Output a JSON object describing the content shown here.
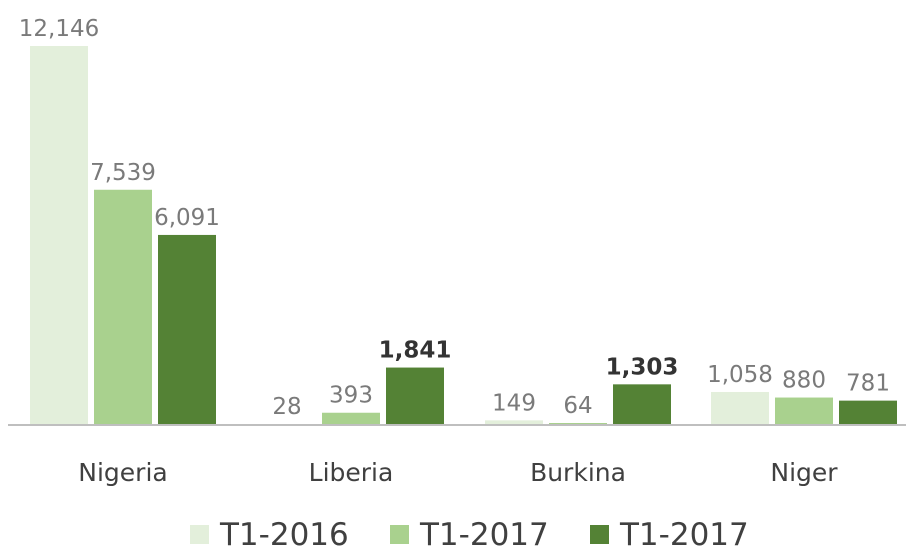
{
  "chart_data": {
    "type": "bar",
    "categories": [
      "Nigeria",
      "Liberia",
      "Burkina",
      "Niger"
    ],
    "series": [
      {
        "name": "T1-2016",
        "values": [
          12146,
          28,
          149,
          1058
        ],
        "labels": [
          "12,146",
          "28",
          "149",
          "1,058"
        ],
        "color": "#e3efdb"
      },
      {
        "name": "T1-2017",
        "values": [
          7539,
          393,
          64,
          880
        ],
        "labels": [
          "7,539",
          "393",
          "64",
          "880"
        ],
        "color": "#a9d18e"
      },
      {
        "name": "T1-2017",
        "values": [
          6091,
          1841,
          1303,
          781
        ],
        "labels": [
          "6,091",
          "1,841",
          "1,303",
          "781"
        ],
        "color": "#548235"
      }
    ],
    "bold_labels": [
      [
        false,
        false,
        false,
        false
      ],
      [
        false,
        false,
        false,
        false
      ],
      [
        false,
        true,
        true,
        false
      ]
    ],
    "ylim": [
      0,
      12146
    ],
    "grid": false,
    "legend": "bottom",
    "baseline_color": "#bfbfbf"
  }
}
